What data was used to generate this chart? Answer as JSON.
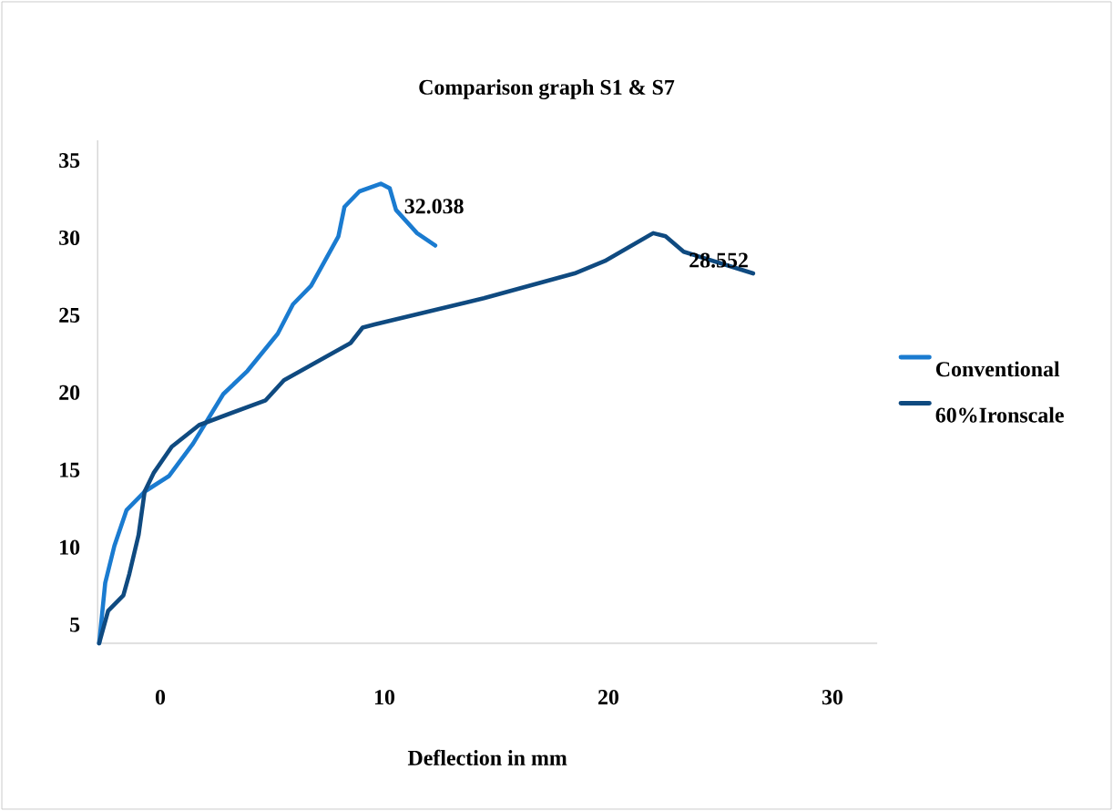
{
  "chart_data": {
    "type": "line",
    "title": "Comparison graph S1 & S7",
    "xlabel": "Deflection in mm",
    "xlim": [
      -2.8,
      32
    ],
    "ylim": [
      3.8,
      36.3
    ],
    "xticks": [
      0,
      10,
      20,
      30
    ],
    "yticks": [
      5,
      10,
      15,
      20,
      25,
      30,
      35
    ],
    "grid": false,
    "legend": "right",
    "marker": "none",
    "line_style": "solid",
    "series": [
      {
        "name": "Conventional",
        "color": "#1a7bd0",
        "x": [
          -2.73,
          -2.46,
          -2.05,
          -1.51,
          -0.7,
          0.38,
          1.46,
          2.81,
          3.89,
          5.24,
          5.92,
          6.73,
          7.95,
          8.22,
          8.89,
          9.84,
          10.24,
          10.52,
          11.46,
          12.27
        ],
        "values": [
          3.8,
          7.7,
          10.1,
          12.4,
          13.6,
          14.6,
          16.7,
          19.9,
          21.4,
          23.8,
          25.7,
          26.9,
          30.1,
          32.0,
          33.0,
          33.5,
          33.2,
          31.8,
          30.3,
          29.5
        ]
      },
      {
        "name": "60%Ironscale",
        "color": "#0f4a80",
        "x": [
          -2.73,
          -2.33,
          -1.65,
          -1.38,
          -0.97,
          -0.7,
          -0.3,
          0.51,
          1.73,
          4.7,
          5.52,
          8.49,
          9.03,
          9.57,
          14.44,
          18.49,
          19.84,
          22.0,
          22.55,
          23.36,
          26.46
        ],
        "values": [
          3.8,
          5.9,
          6.9,
          8.3,
          10.8,
          13.6,
          14.8,
          16.5,
          17.9,
          19.5,
          20.8,
          23.2,
          24.2,
          24.4,
          26.1,
          27.7,
          28.5,
          30.3,
          30.1,
          29.1,
          27.7
        ]
      }
    ],
    "annotations": [
      {
        "text": "32.038",
        "x": 10.6,
        "y": 32.038
      },
      {
        "text": "28.552",
        "x": 23.3,
        "y": 28.552
      }
    ]
  }
}
